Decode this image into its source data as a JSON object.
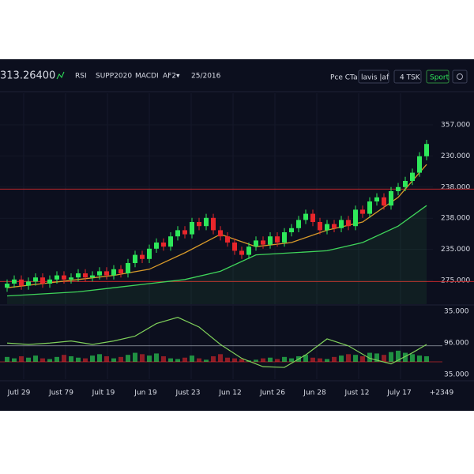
{
  "toolbar": {
    "price": "313.26400",
    "items": [
      "RSI",
      "SUPP2020",
      "MACDI",
      "AF2▾",
      "25/2016"
    ],
    "right_items": [
      "Pce CTa|",
      "lavis |af",
      "4 TSK"
    ],
    "active_item": "Sport"
  },
  "chart_data": {
    "type": "candlestick",
    "ylim": [
      0,
      100
    ],
    "price_labels": [
      "357.000",
      "230.000",
      "238.000",
      "238.000",
      "235.000",
      "275.000"
    ],
    "x_labels": [
      "Jutl 29",
      "Just 79",
      "Jult 19",
      "Jun 19",
      "Just 23",
      "Jun 12",
      "Junt 26",
      "Jun 28",
      "Just 12",
      "July 17",
      "+2349"
    ],
    "up_color": "#2ee85a",
    "down_color": "#e8262b",
    "open": [
      8,
      10,
      12,
      9,
      11,
      13,
      10,
      12,
      14,
      12,
      13,
      15,
      13,
      14,
      16,
      14,
      17,
      15,
      20,
      24,
      22,
      27,
      30,
      28,
      33,
      36,
      34,
      40,
      38,
      42,
      36,
      33,
      30,
      26,
      24,
      28,
      31,
      29,
      33,
      30,
      35,
      37,
      41,
      44,
      40,
      36,
      39,
      37,
      41,
      38,
      46,
      44,
      50,
      52,
      48,
      55,
      57,
      60,
      64,
      72
    ],
    "high": [
      12,
      14,
      14,
      13,
      15,
      15,
      14,
      16,
      16,
      15,
      17,
      17,
      16,
      18,
      18,
      19,
      19,
      22,
      26,
      26,
      29,
      32,
      32,
      35,
      38,
      38,
      42,
      42,
      44,
      44,
      38,
      35,
      32,
      28,
      30,
      33,
      33,
      35,
      35,
      37,
      39,
      43,
      46,
      46,
      42,
      41,
      41,
      43,
      43,
      48,
      48,
      52,
      54,
      54,
      57,
      59,
      62,
      66,
      74,
      80
    ],
    "low": [
      6,
      8,
      7,
      7,
      9,
      8,
      8,
      10,
      10,
      10,
      11,
      11,
      11,
      12,
      12,
      12,
      13,
      13,
      18,
      20,
      20,
      25,
      26,
      26,
      31,
      32,
      32,
      36,
      36,
      34,
      31,
      28,
      24,
      22,
      22,
      26,
      27,
      27,
      28,
      28,
      33,
      35,
      39,
      38,
      34,
      34,
      35,
      35,
      36,
      36,
      42,
      42,
      48,
      46,
      46,
      53,
      55,
      58,
      62,
      70
    ],
    "close": [
      10,
      12,
      9,
      11,
      13,
      10,
      12,
      14,
      12,
      13,
      15,
      13,
      14,
      16,
      14,
      17,
      15,
      20,
      24,
      22,
      27,
      30,
      28,
      33,
      36,
      34,
      40,
      38,
      42,
      36,
      33,
      30,
      26,
      24,
      28,
      31,
      29,
      33,
      30,
      35,
      37,
      41,
      44,
      40,
      36,
      39,
      37,
      41,
      38,
      46,
      44,
      50,
      52,
      48,
      55,
      57,
      60,
      64,
      72,
      78
    ],
    "levels": [
      56,
      11
    ],
    "level_color": "#c0282b",
    "moving_averages": [
      {
        "color": "#3fd45a",
        "x": [
          0,
          5,
          10,
          15,
          20,
          25,
          30,
          35,
          40,
          45,
          50,
          55,
          59
        ],
        "values": [
          4,
          5,
          6,
          8,
          10,
          12,
          16,
          24,
          25,
          26,
          30,
          38,
          48
        ]
      },
      {
        "color": "#d89a2a",
        "x": [
          0,
          5,
          10,
          15,
          20,
          25,
          30,
          35,
          40,
          45,
          50,
          55,
          59
        ],
        "values": [
          8,
          10,
          12,
          14,
          17,
          25,
          34,
          28,
          30,
          36,
          40,
          52,
          68
        ]
      }
    ],
    "indicator": {
      "ylim": [
        0,
        100
      ],
      "labels": [
        "35.000",
        "96.000",
        "35.000"
      ],
      "levels": [
        25,
        48
      ],
      "level_colors": [
        "#c0282b",
        "#9aa0aa"
      ],
      "histogram": [
        32,
        30,
        33,
        31,
        34,
        30,
        29,
        32,
        35,
        33,
        31,
        30,
        34,
        36,
        33,
        30,
        32,
        35,
        38,
        36,
        34,
        37,
        33,
        30,
        29,
        31,
        34,
        30,
        28,
        33,
        36,
        31,
        30,
        29,
        27,
        28,
        30,
        31,
        29,
        32,
        30,
        33,
        35,
        31,
        30,
        29,
        32,
        34,
        36,
        35,
        33,
        38,
        37,
        35,
        39,
        41,
        38,
        36,
        34,
        33
      ],
      "oscillator_color": "#7fd05a",
      "oscillator_x": [
        0,
        3,
        6,
        9,
        12,
        15,
        18,
        21,
        24,
        27,
        30,
        33,
        36,
        39,
        42,
        45,
        48,
        51,
        54,
        57,
        59
      ],
      "oscillator": [
        52,
        50,
        52,
        55,
        50,
        55,
        62,
        80,
        89,
        75,
        50,
        30,
        18,
        17,
        35,
        58,
        48,
        30,
        22,
        38,
        50
      ]
    }
  }
}
